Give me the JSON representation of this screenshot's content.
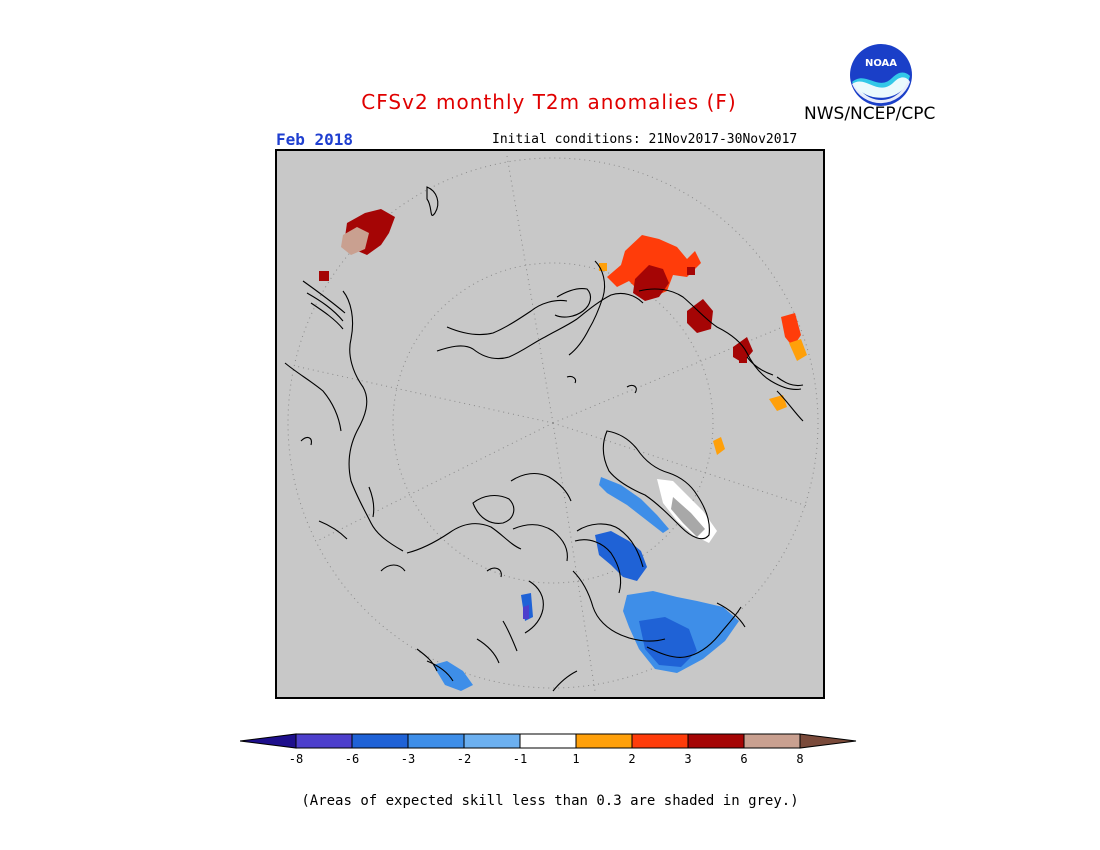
{
  "header": {
    "title": "CFSv2 monthly T2m anomalies (F)",
    "month": "Feb 2018",
    "initial_conditions": "Initial conditions: 21Nov2017-30Nov2017",
    "agency": "NWS/NCEP/CPC",
    "logo_text": "NOAA"
  },
  "colorbar": {
    "labels": [
      "-8",
      "-6",
      "-3",
      "-2",
      "-1",
      "1",
      "2",
      "3",
      "6",
      "8"
    ],
    "colors": [
      "#1e0f8c",
      "#4d3fcc",
      "#1f62d6",
      "#3e8ee8",
      "#6cb0f0",
      "#ffffff",
      "#ffa00a",
      "#ff3c0a",
      "#a50505",
      "#c9a090",
      "#7a4a3a"
    ]
  },
  "footnote": "(Areas of expected skill less than 0.3 are shaded in grey.)",
  "map": {
    "projection": "north polar stereographic",
    "background_color": "#c8c8c8",
    "anomaly_regions": [
      {
        "name": "western-canada-cold",
        "category": "-3",
        "color": "#1f62d6"
      },
      {
        "name": "hudson-bay-cold",
        "category": "-6",
        "color": "#1f62d6"
      },
      {
        "name": "eastern-canada-cold",
        "category": "-3",
        "color": "#3e8ee8"
      },
      {
        "name": "greenland-neutral",
        "category": "-1",
        "color": "#ffffff"
      },
      {
        "name": "siberia-warm",
        "category": "3",
        "color": "#ff3c0a"
      },
      {
        "name": "siberia-very-warm",
        "category": "6",
        "color": "#a50505"
      },
      {
        "name": "europe-warm",
        "category": "3",
        "color": "#ff3c0a"
      },
      {
        "name": "east-asia-very-warm",
        "category": "6",
        "color": "#a50505"
      }
    ]
  }
}
